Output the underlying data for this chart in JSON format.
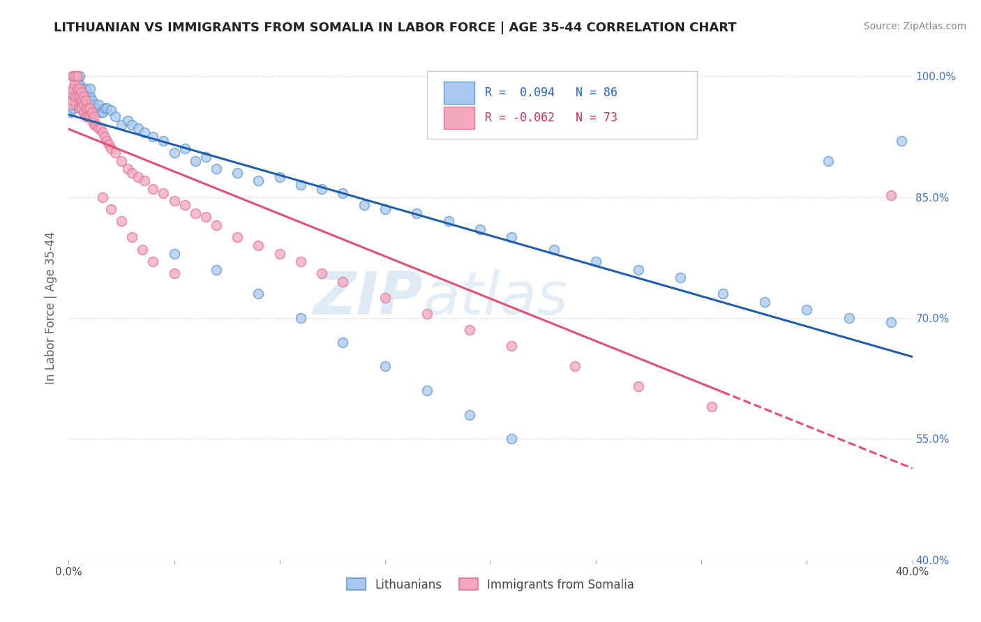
{
  "title": "LITHUANIAN VS IMMIGRANTS FROM SOMALIA IN LABOR FORCE | AGE 35-44 CORRELATION CHART",
  "source": "Source: ZipAtlas.com",
  "ylabel": "In Labor Force | Age 35-44",
  "xlim": [
    0.0,
    0.4
  ],
  "ylim": [
    0.4,
    1.025
  ],
  "ytick_positions": [
    0.4,
    0.55,
    0.7,
    0.85,
    1.0
  ],
  "ytick_labels": [
    "40.0%",
    "55.0%",
    "70.0%",
    "85.0%",
    "100.0%"
  ],
  "blue_color": "#A8C8F0",
  "pink_color": "#F4A8BC",
  "blue_edge_color": "#6699CC",
  "pink_edge_color": "#E07898",
  "blue_line_color": "#1E5FA8",
  "pink_line_color": "#E05070",
  "pink_line_dash": true,
  "R_blue": 0.094,
  "N_blue": 86,
  "R_pink": -0.062,
  "N_pink": 73,
  "marker_size": 100,
  "watermark_zip": "ZIP",
  "watermark_atlas": "atlas",
  "blue_scatter_x": [
    0.001,
    0.001,
    0.002,
    0.002,
    0.002,
    0.003,
    0.003,
    0.003,
    0.003,
    0.004,
    0.004,
    0.004,
    0.005,
    0.005,
    0.005,
    0.005,
    0.006,
    0.006,
    0.006,
    0.007,
    0.007,
    0.007,
    0.008,
    0.008,
    0.008,
    0.009,
    0.009,
    0.01,
    0.01,
    0.01,
    0.011,
    0.011,
    0.012,
    0.012,
    0.013,
    0.014,
    0.015,
    0.016,
    0.017,
    0.018,
    0.02,
    0.022,
    0.025,
    0.028,
    0.03,
    0.033,
    0.036,
    0.04,
    0.045,
    0.05,
    0.055,
    0.06,
    0.065,
    0.07,
    0.08,
    0.09,
    0.1,
    0.11,
    0.12,
    0.13,
    0.14,
    0.15,
    0.165,
    0.18,
    0.195,
    0.21,
    0.23,
    0.25,
    0.27,
    0.29,
    0.31,
    0.33,
    0.35,
    0.37,
    0.39,
    0.395,
    0.05,
    0.07,
    0.09,
    0.11,
    0.13,
    0.15,
    0.17,
    0.19,
    0.21,
    0.36
  ],
  "blue_scatter_y": [
    0.955,
    0.97,
    0.96,
    0.98,
    1.0,
    0.975,
    0.965,
    0.99,
    1.0,
    0.985,
    0.995,
    1.0,
    0.96,
    0.975,
    0.99,
    1.0,
    0.965,
    0.975,
    0.985,
    0.955,
    0.97,
    0.98,
    0.96,
    0.975,
    0.985,
    0.96,
    0.97,
    0.965,
    0.975,
    0.985,
    0.96,
    0.97,
    0.955,
    0.965,
    0.96,
    0.965,
    0.955,
    0.955,
    0.96,
    0.96,
    0.958,
    0.95,
    0.94,
    0.945,
    0.94,
    0.935,
    0.93,
    0.925,
    0.92,
    0.905,
    0.91,
    0.895,
    0.9,
    0.885,
    0.88,
    0.87,
    0.875,
    0.865,
    0.86,
    0.855,
    0.84,
    0.835,
    0.83,
    0.82,
    0.81,
    0.8,
    0.785,
    0.77,
    0.76,
    0.75,
    0.73,
    0.72,
    0.71,
    0.7,
    0.695,
    0.92,
    0.78,
    0.76,
    0.73,
    0.7,
    0.67,
    0.64,
    0.61,
    0.58,
    0.55,
    0.895
  ],
  "pink_scatter_x": [
    0.001,
    0.001,
    0.002,
    0.002,
    0.002,
    0.003,
    0.003,
    0.003,
    0.004,
    0.004,
    0.004,
    0.005,
    0.005,
    0.005,
    0.006,
    0.006,
    0.006,
    0.007,
    0.007,
    0.007,
    0.008,
    0.008,
    0.008,
    0.009,
    0.009,
    0.01,
    0.01,
    0.011,
    0.011,
    0.012,
    0.012,
    0.013,
    0.014,
    0.015,
    0.016,
    0.017,
    0.018,
    0.019,
    0.02,
    0.022,
    0.025,
    0.028,
    0.03,
    0.033,
    0.036,
    0.04,
    0.045,
    0.05,
    0.055,
    0.06,
    0.065,
    0.07,
    0.08,
    0.09,
    0.1,
    0.11,
    0.12,
    0.13,
    0.15,
    0.17,
    0.19,
    0.21,
    0.24,
    0.27,
    0.305,
    0.016,
    0.02,
    0.025,
    0.03,
    0.035,
    0.04,
    0.05,
    0.39
  ],
  "pink_scatter_y": [
    0.965,
    0.98,
    0.97,
    0.985,
    1.0,
    0.975,
    0.99,
    1.0,
    0.975,
    0.985,
    1.0,
    0.96,
    0.975,
    0.985,
    0.96,
    0.97,
    0.98,
    0.955,
    0.965,
    0.975,
    0.95,
    0.96,
    0.97,
    0.95,
    0.96,
    0.95,
    0.96,
    0.945,
    0.955,
    0.94,
    0.95,
    0.94,
    0.935,
    0.935,
    0.93,
    0.925,
    0.92,
    0.915,
    0.91,
    0.905,
    0.895,
    0.885,
    0.88,
    0.875,
    0.87,
    0.86,
    0.855,
    0.845,
    0.84,
    0.83,
    0.825,
    0.815,
    0.8,
    0.79,
    0.78,
    0.77,
    0.755,
    0.745,
    0.725,
    0.705,
    0.685,
    0.665,
    0.64,
    0.615,
    0.59,
    0.85,
    0.835,
    0.82,
    0.8,
    0.785,
    0.77,
    0.755,
    0.852
  ]
}
